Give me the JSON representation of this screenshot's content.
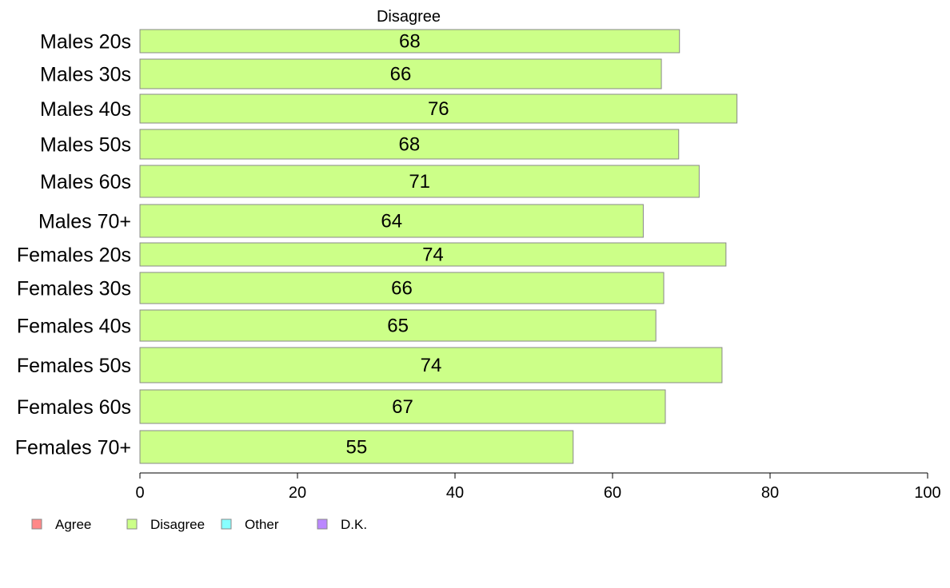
{
  "chart_data": {
    "type": "bar",
    "orientation": "horizontal",
    "title": "Disagree",
    "categories": [
      "Males 20s",
      "Males 30s",
      "Males 40s",
      "Males 50s",
      "Males 60s",
      "Males 70+",
      "Females 20s",
      "Females 30s",
      "Females 40s",
      "Females 50s",
      "Females 60s",
      "Females 70+"
    ],
    "series": [
      {
        "name": "Disagree",
        "color": "#ccff88",
        "values": [
          68.5,
          66.2,
          75.8,
          68.4,
          71.0,
          63.9,
          74.4,
          66.5,
          65.5,
          73.9,
          66.7,
          55.0
        ],
        "labels": [
          "68",
          "66",
          "76",
          "68",
          "71",
          "64",
          "74",
          "66",
          "65",
          "74",
          "67",
          "55"
        ]
      }
    ],
    "xlim": [
      0,
      100
    ],
    "xticks": [
      "0",
      "20",
      "40",
      "60",
      "80",
      "100"
    ],
    "xlabel": "",
    "ylabel": "",
    "grid": false,
    "legend": {
      "placement": "bottom-left",
      "entries": [
        {
          "label": "Agree",
          "color": "#ff8888"
        },
        {
          "label": "Disagree",
          "color": "#ccff88"
        },
        {
          "label": "Other",
          "color": "#88ffff"
        },
        {
          "label": "D.K.",
          "color": "#bb88ff"
        }
      ]
    }
  }
}
